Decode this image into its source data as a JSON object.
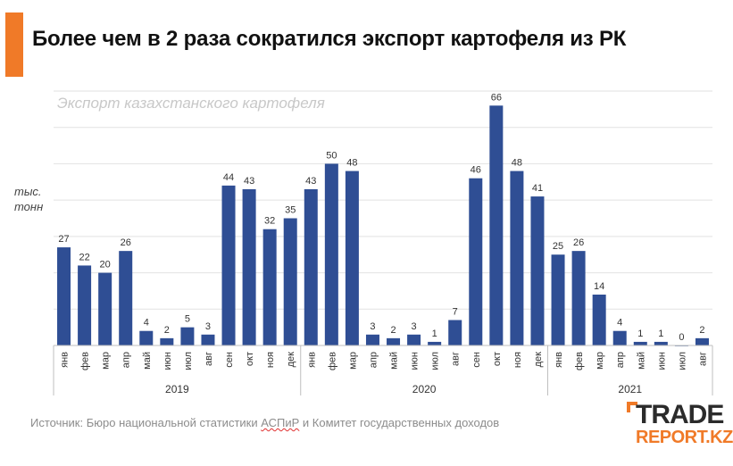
{
  "headline": "Более чем в 2 раза сократился экспорт картофеля из РК",
  "source_prefix": "Источник: Бюро национальной статистики ",
  "source_underlined": "АСПиР",
  "source_suffix": " и Комитет государственных доходов",
  "logo": {
    "main": "TRADE",
    "sub": "REPORT.KZ"
  },
  "colors": {
    "accent": "#f07a28",
    "bar": "#2f4e94",
    "logo_orange": "#f07a28"
  },
  "chart_data": {
    "type": "bar",
    "title": "Экспорт казахстанского картофеля",
    "ylabel": "тыс. тонн",
    "ylim": [
      0,
      70
    ],
    "grid": true,
    "categories": [
      "янв",
      "фев",
      "мар",
      "апр",
      "май",
      "июн",
      "июл",
      "авг",
      "сен",
      "окт",
      "ноя",
      "дек",
      "янв",
      "фев",
      "мар",
      "апр",
      "май",
      "июн",
      "июл",
      "авг",
      "сен",
      "окт",
      "ноя",
      "дек",
      "янв",
      "фев",
      "мар",
      "апр",
      "май",
      "июн",
      "июл",
      "авг"
    ],
    "values": [
      27,
      22,
      20,
      26,
      4,
      2,
      5,
      3,
      44,
      43,
      32,
      35,
      43,
      50,
      48,
      3,
      2,
      3,
      1,
      7,
      46,
      66,
      48,
      41,
      25,
      26,
      14,
      4,
      1,
      1,
      0,
      2
    ],
    "groups": [
      {
        "label": "2019",
        "count": 12
      },
      {
        "label": "2020",
        "count": 12
      },
      {
        "label": "2021",
        "count": 8
      }
    ]
  }
}
